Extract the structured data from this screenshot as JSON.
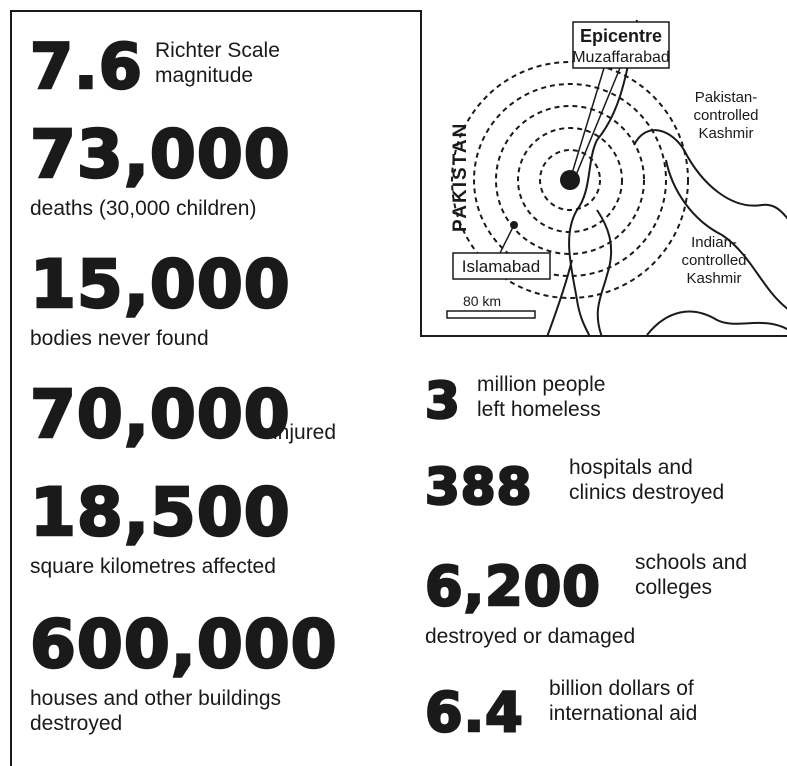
{
  "stats_left": [
    {
      "number": "7.6",
      "label": "Richter Scale\nmagnitude"
    },
    {
      "number": "73,000",
      "label": "deaths (30,000 children)"
    },
    {
      "number": "15,000",
      "label": "bodies never found"
    },
    {
      "number": "70,000",
      "label": "injured"
    },
    {
      "number": "18,500",
      "label": "square kilometres affected"
    },
    {
      "number": "600,000",
      "label": "houses and other buildings\ndestroyed"
    }
  ],
  "stats_right": [
    {
      "number": "3",
      "label": "million people\nleft homeless"
    },
    {
      "number": "388",
      "label": "hospitals and\nclinics destroyed"
    },
    {
      "number": "6,200",
      "label": "schools and\ncolleges",
      "label2": "destroyed or damaged"
    },
    {
      "number": "6.4",
      "label": "billion dollars of\ninternational aid"
    }
  ],
  "map": {
    "epicentre_title": "Epicentre",
    "epicentre_place": "Muzaffarabad",
    "country": "PAKISTAN",
    "region_pakistan_kashmir": [
      "Pakistan-",
      "controlled",
      "Kashmir"
    ],
    "region_indian_kashmir": [
      "Indian-",
      "controlled",
      "Kashmir"
    ],
    "city": "Islamabad",
    "scale_label": "80 km"
  }
}
